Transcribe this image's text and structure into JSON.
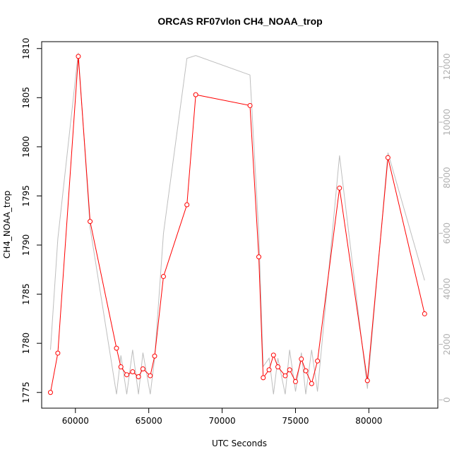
{
  "chart_data": {
    "type": "line",
    "title": "ORCAS RF07vlon CH4_NOAA_trop",
    "xlabel": "UTC Seconds",
    "ylabel": "CH4_NOAA_trop",
    "xlim": [
      57700,
      84700
    ],
    "ylim": [
      1773.4,
      1810.7
    ],
    "y2lim": [
      -300,
      12900
    ],
    "x_ticks": [
      60000,
      65000,
      70000,
      75000,
      80000
    ],
    "y_ticks": [
      1775,
      1780,
      1785,
      1790,
      1795,
      1800,
      1805,
      1810
    ],
    "y2_ticks": [
      0,
      2000,
      4000,
      6000,
      8000,
      10000,
      12000
    ],
    "primary_color": "#ff0000",
    "secondary_color": "#bebebe",
    "series": [
      {
        "axis": "left",
        "style": "line+points",
        "x": [
          58300,
          58800,
          60200,
          61000,
          62800,
          63100,
          63500,
          63900,
          64300,
          64600,
          65100,
          65400,
          66000,
          67600,
          68200,
          71900,
          72500,
          72800,
          73200,
          73500,
          73800,
          74300,
          74600,
          75000,
          75400,
          75700,
          76100,
          76500,
          78000,
          79900,
          81300,
          83800
        ],
        "y": [
          1775.0,
          1779.0,
          1809.2,
          1792.4,
          1779.5,
          1777.6,
          1776.8,
          1777.1,
          1776.6,
          1777.4,
          1776.7,
          1778.7,
          1786.8,
          1794.1,
          1805.3,
          1804.2,
          1788.8,
          1776.5,
          1777.3,
          1778.8,
          1777.6,
          1776.7,
          1777.3,
          1776.1,
          1778.4,
          1777.2,
          1775.9,
          1778.2,
          1795.8,
          1776.2,
          1798.9,
          1783.0
        ]
      },
      {
        "axis": "right",
        "style": "line",
        "x": [
          58300,
          58800,
          60200,
          61000,
          62800,
          63100,
          63500,
          63900,
          64300,
          64600,
          65100,
          65400,
          66000,
          67600,
          68200,
          71900,
          72500,
          72800,
          73200,
          73500,
          73800,
          74300,
          74600,
          75000,
          75400,
          75700,
          76100,
          76500,
          78000,
          79900,
          81300,
          83800
        ],
        "y": [
          1800,
          5800,
          12500,
          6200,
          200,
          1600,
          200,
          1800,
          200,
          1700,
          200,
          1500,
          6000,
          12300,
          12400,
          11700,
          6000,
          1200,
          1500,
          200,
          1500,
          200,
          1800,
          300,
          1700,
          200,
          1800,
          300,
          8800,
          400,
          8900,
          4300
        ]
      }
    ]
  }
}
